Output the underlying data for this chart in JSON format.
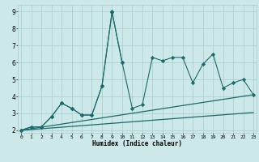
{
  "xlabel": "Humidex (Indice chaleur)",
  "background_color": "#cce8e8",
  "grid_color": "#aacccc",
  "line_color": "#1a6b6b",
  "xlim": [
    0,
    23
  ],
  "ylim": [
    2,
    9
  ],
  "xticks": [
    0,
    1,
    2,
    3,
    4,
    5,
    6,
    7,
    8,
    9,
    10,
    11,
    12,
    13,
    14,
    15,
    16,
    17,
    18,
    19,
    20,
    21,
    22,
    23
  ],
  "yticks": [
    2,
    3,
    4,
    5,
    6,
    7,
    8,
    9
  ],
  "series1_x": [
    0,
    1,
    2,
    3,
    4,
    5,
    6,
    7,
    8,
    9,
    10,
    11,
    12,
    13,
    14,
    15,
    16,
    17,
    18,
    19,
    20,
    21,
    22,
    23
  ],
  "series1_y": [
    2.0,
    2.2,
    2.2,
    2.8,
    3.6,
    3.3,
    2.9,
    2.9,
    4.6,
    9.0,
    6.0,
    3.3,
    3.5,
    6.3,
    6.1,
    6.3,
    6.3,
    4.8,
    5.9,
    6.5,
    4.5,
    4.8,
    5.0,
    4.1
  ],
  "series2_x": [
    0,
    1,
    2,
    3,
    4,
    5,
    6,
    7,
    8,
    9,
    10
  ],
  "series2_y": [
    2.0,
    2.2,
    2.2,
    2.8,
    3.6,
    3.3,
    2.9,
    2.9,
    4.6,
    8.95,
    6.0
  ],
  "line1_x": [
    0,
    23
  ],
  "line1_y": [
    2.0,
    4.1
  ],
  "line2_x": [
    0,
    23
  ],
  "line2_y": [
    2.0,
    3.05
  ]
}
